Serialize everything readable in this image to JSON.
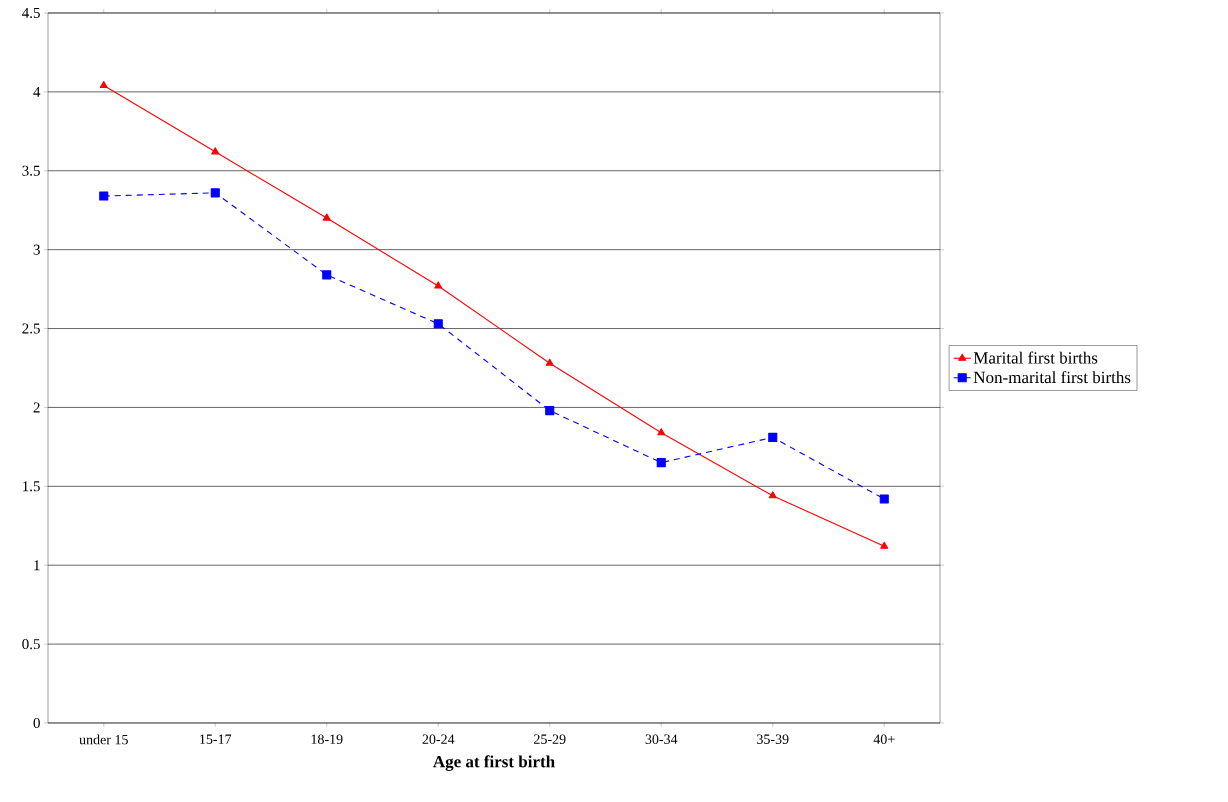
{
  "chart_data": {
    "type": "line",
    "xlabel": "Age at first birth",
    "categories": [
      "under 15",
      "15-17",
      "18-19",
      "20-24",
      "25-29",
      "30-34",
      "35-39",
      "40+"
    ],
    "series": [
      {
        "name": "Marital first births",
        "color": "#ff0000",
        "marker": "triangle",
        "line_style": "solid",
        "values": [
          4.04,
          3.62,
          3.2,
          2.77,
          2.28,
          1.84,
          1.44,
          1.12
        ]
      },
      {
        "name": "Non-marital first births",
        "color": "#0000ff",
        "marker": "square",
        "line_style": "dashed",
        "values": [
          3.34,
          3.36,
          2.84,
          2.53,
          1.98,
          1.65,
          1.81,
          1.42
        ]
      }
    ],
    "ylim": [
      0,
      4.5
    ],
    "yticks": [
      0,
      0.5,
      1,
      1.5,
      2,
      2.5,
      3,
      3.5,
      4,
      4.5
    ],
    "grid": "y",
    "legend": "right"
  }
}
